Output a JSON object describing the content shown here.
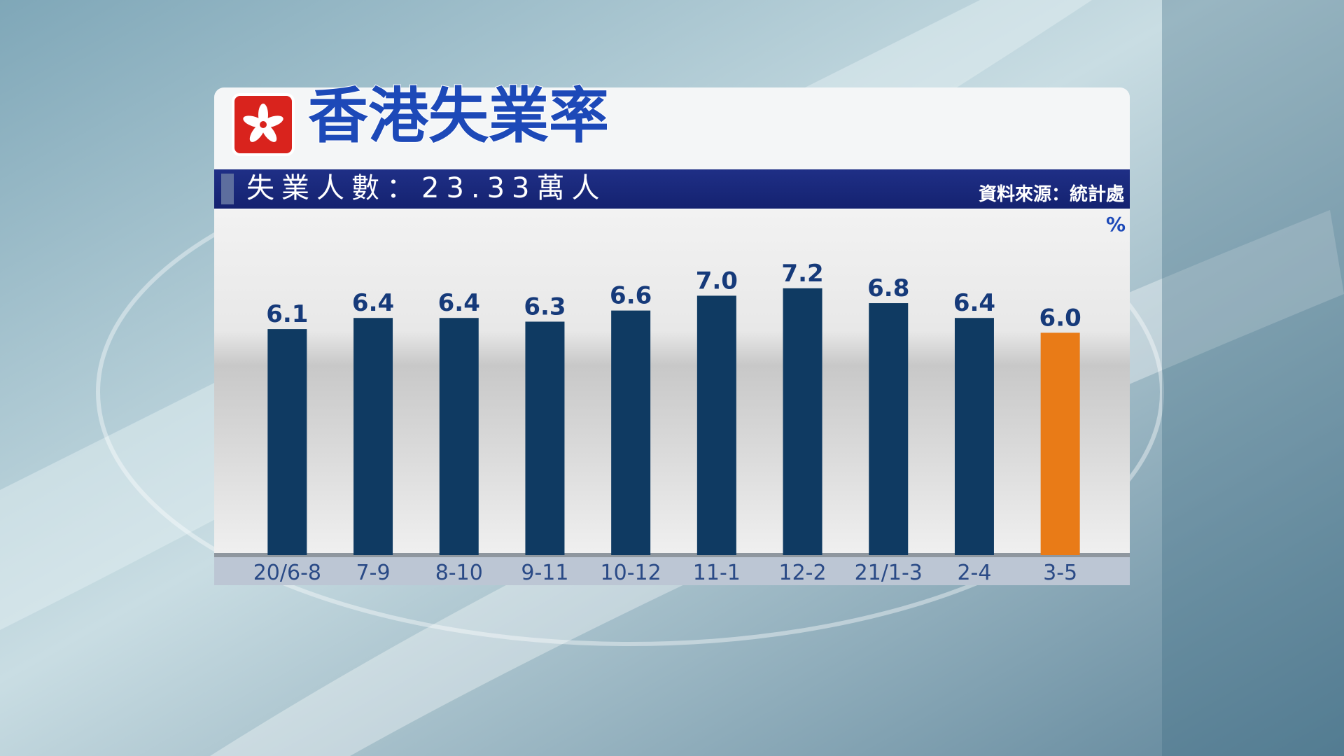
{
  "chart_data": {
    "type": "bar",
    "title": "香港失業率",
    "subtitle": "失業人數：23.33萬人",
    "source": "資料來源：統計處",
    "unit": "%",
    "categories": [
      "20/6-8",
      "7-9",
      "8-10",
      "9-11",
      "10-12",
      "11-1",
      "12-2",
      "21/1-3",
      "2-4",
      "3-5"
    ],
    "values": [
      6.1,
      6.4,
      6.4,
      6.3,
      6.6,
      7.0,
      7.2,
      6.8,
      6.4,
      6.0
    ],
    "value_labels": [
      "6.1",
      "6.4",
      "6.4",
      "6.3",
      "6.6",
      "7.0",
      "7.2",
      "6.8",
      "6.4",
      "6.0"
    ],
    "colors": [
      "#0f3a62",
      "#0f3a62",
      "#0f3a62",
      "#0f3a62",
      "#0f3a62",
      "#0f3a62",
      "#0f3a62",
      "#0f3a62",
      "#0f3a62",
      "#e97b17"
    ],
    "ylim": [
      0,
      9.2
    ]
  }
}
